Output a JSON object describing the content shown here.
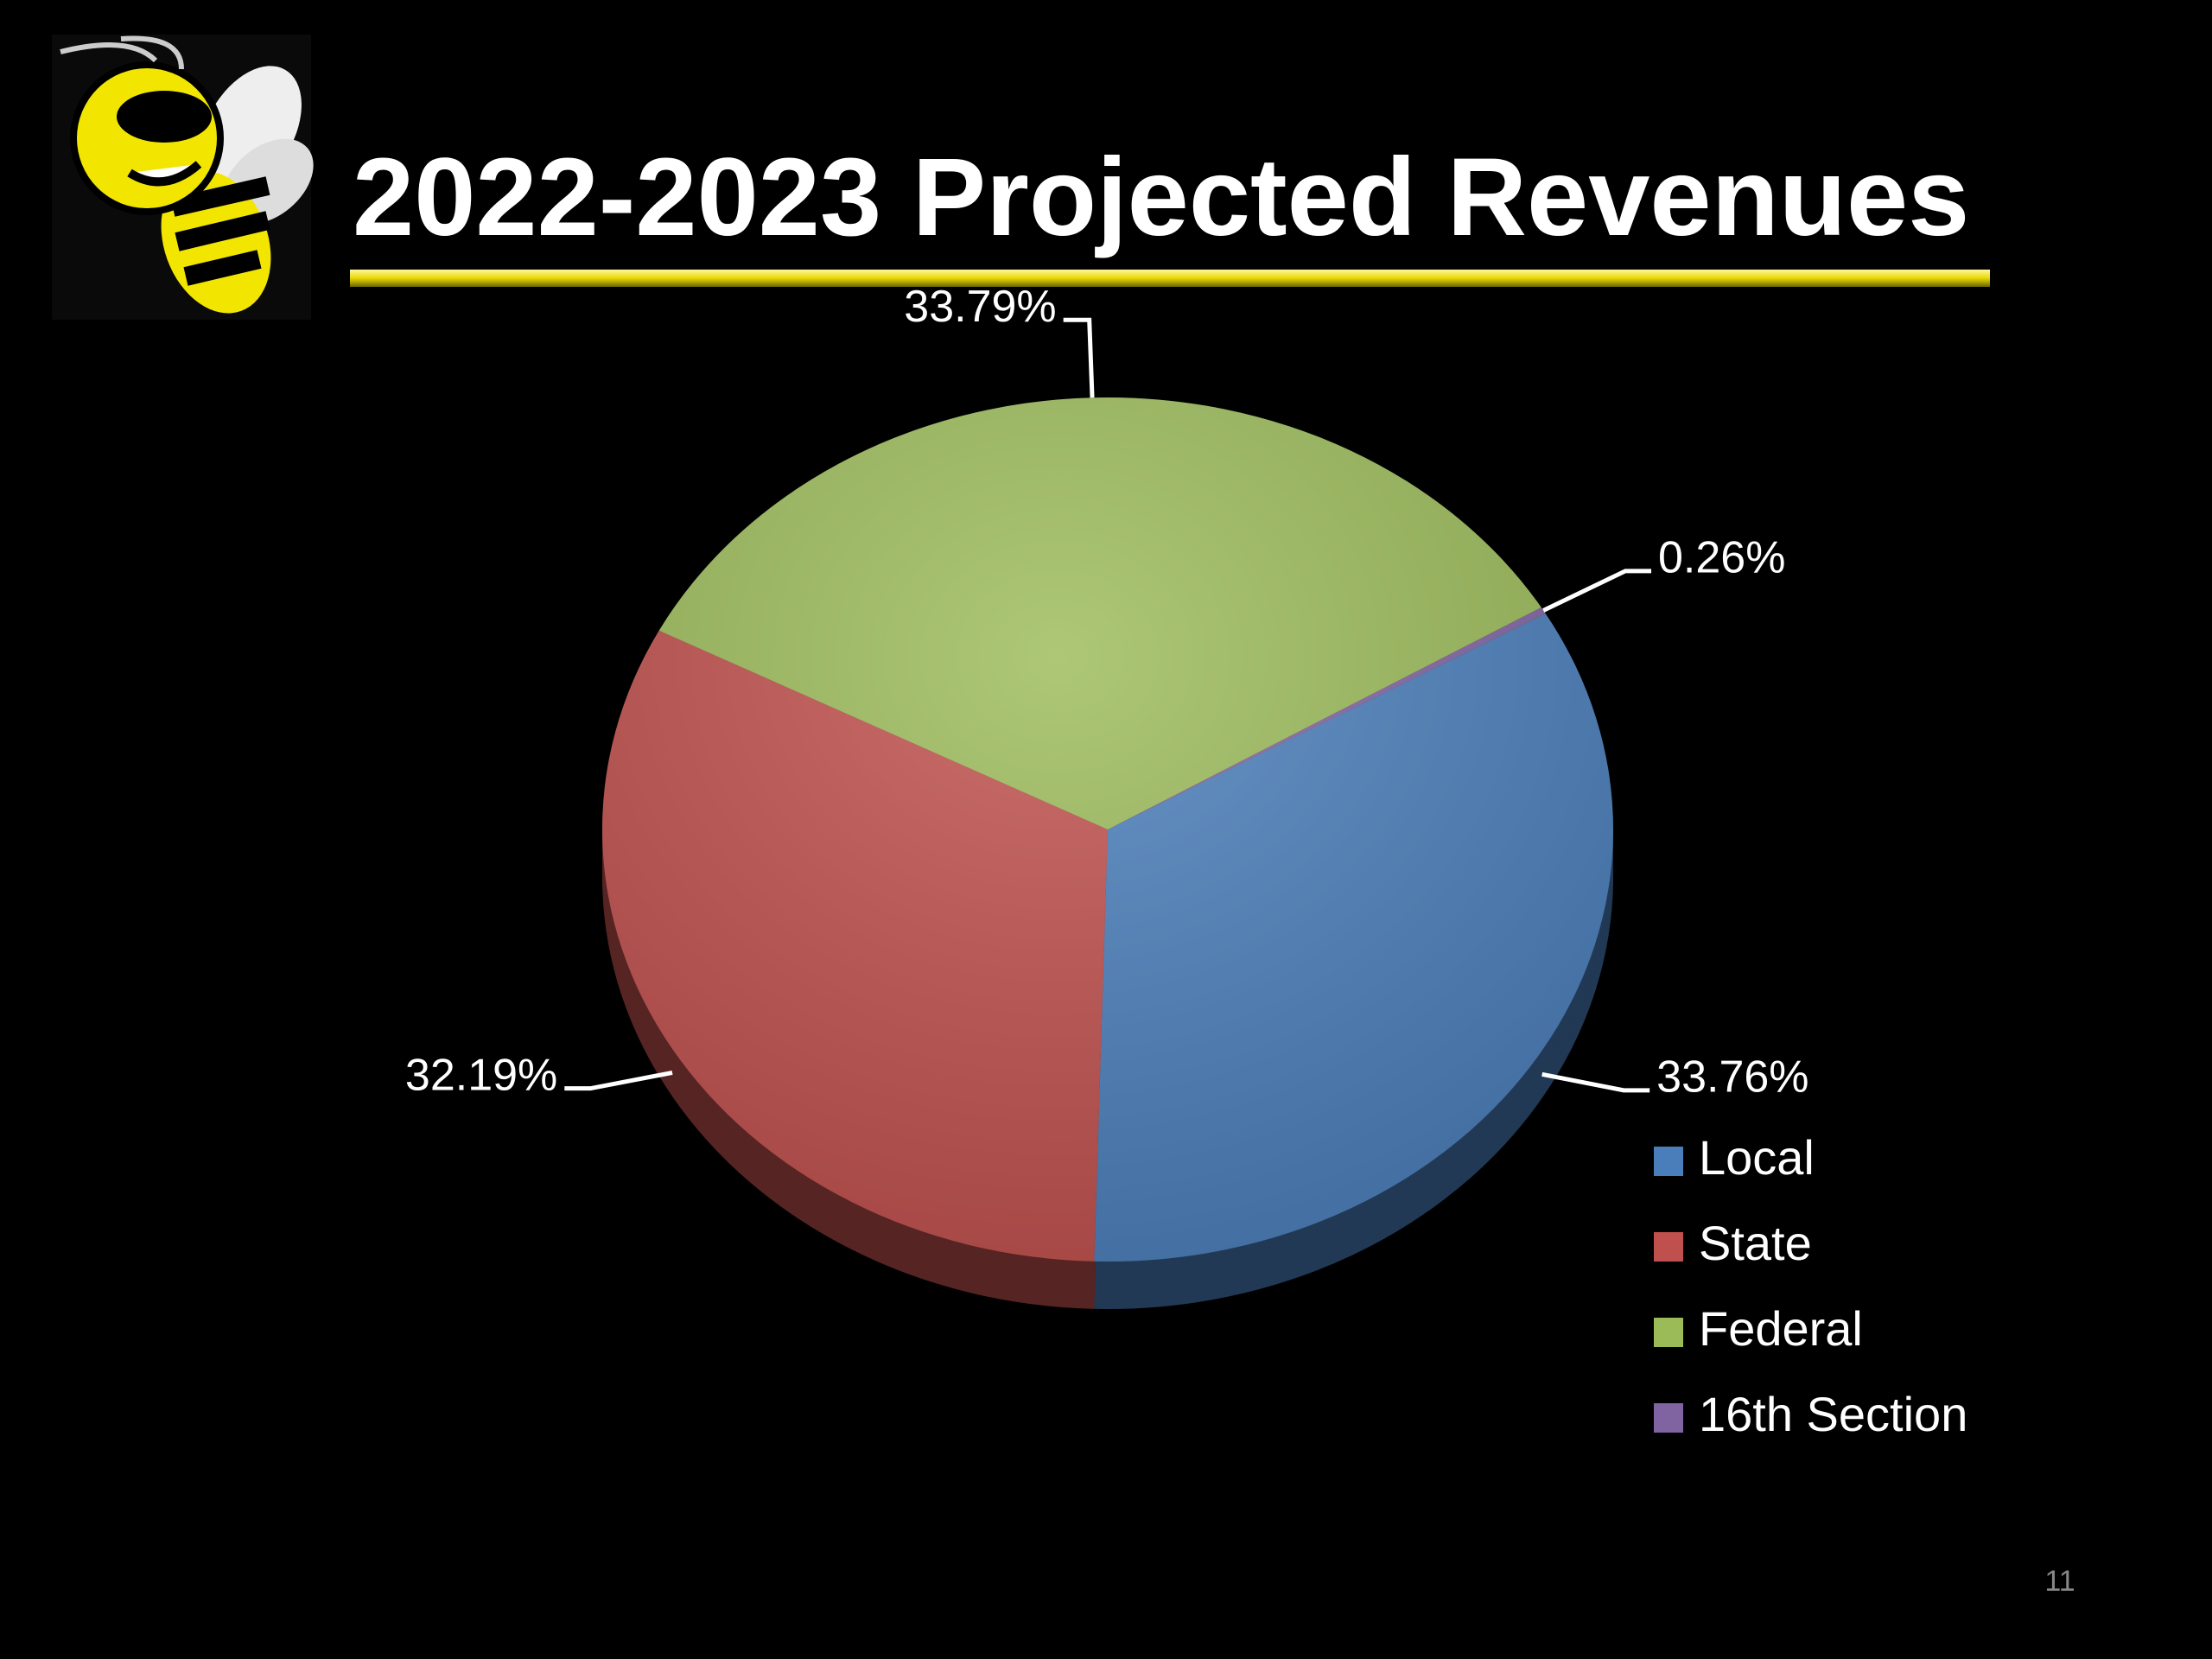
{
  "chart_data": {
    "type": "pie",
    "title": "2022-2023 Projected Revenues",
    "categories": [
      "Local",
      "State",
      "Federal",
      "16th Section"
    ],
    "values": [
      33.76,
      32.19,
      33.79,
      0.26
    ],
    "value_labels": [
      "33.76%",
      "32.19%",
      "33.79%",
      "0.26%"
    ],
    "colors": [
      "#4a7ebb",
      "#c0504d",
      "#9bbb59",
      "#8064a2"
    ],
    "legend": "right"
  },
  "slide": {
    "page_number": "11"
  }
}
